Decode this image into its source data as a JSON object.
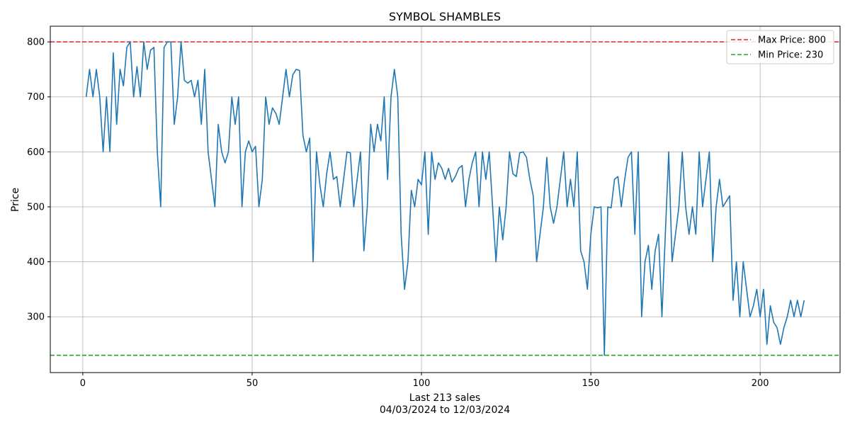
{
  "chart_data": {
    "type": "line",
    "title": "SYMBOL SHAMBLES",
    "xlabel": "Last 213 sales",
    "xlabel_sub": "04/03/2024 to 12/03/2024",
    "ylabel": "Price",
    "xlim": [
      -9.6,
      223.6
    ],
    "ylim": [
      198.5,
      828.5
    ],
    "xticks": [
      0,
      50,
      100,
      150,
      200
    ],
    "yticks": [
      300,
      400,
      500,
      600,
      700,
      800
    ],
    "grid": true,
    "legend_position": "top-right",
    "reference_lines": [
      {
        "label": "Max Price: 800",
        "value": 800,
        "color": "#d62728"
      },
      {
        "label": "Min Price: 230",
        "value": 230,
        "color": "#2ca02c"
      }
    ],
    "series": [
      {
        "color": "#1f77b4",
        "x": [
          1,
          2,
          3,
          4,
          5,
          6,
          7,
          8,
          9,
          10,
          11,
          12,
          13,
          14,
          15,
          16,
          17,
          18,
          19,
          20,
          21,
          22,
          23,
          24,
          25,
          26,
          27,
          28,
          29,
          30,
          31,
          32,
          33,
          34,
          35,
          36,
          37,
          38,
          39,
          40,
          41,
          42,
          43,
          44,
          45,
          46,
          47,
          48,
          49,
          50,
          51,
          52,
          53,
          54,
          55,
          56,
          57,
          58,
          59,
          60,
          61,
          62,
          63,
          64,
          65,
          66,
          67,
          68,
          69,
          70,
          71,
          72,
          73,
          74,
          75,
          76,
          77,
          78,
          79,
          80,
          81,
          82,
          83,
          84,
          85,
          86,
          87,
          88,
          89,
          90,
          91,
          92,
          93,
          94,
          95,
          96,
          97,
          98,
          99,
          100,
          101,
          102,
          103,
          104,
          105,
          106,
          107,
          108,
          109,
          110,
          111,
          112,
          113,
          114,
          115,
          116,
          117,
          118,
          119,
          120,
          121,
          122,
          123,
          124,
          125,
          126,
          127,
          128,
          129,
          130,
          131,
          132,
          133,
          134,
          135,
          136,
          137,
          138,
          139,
          140,
          141,
          142,
          143,
          144,
          145,
          146,
          147,
          148,
          149,
          150,
          151,
          152,
          153,
          154,
          155,
          156,
          157,
          158,
          159,
          160,
          161,
          162,
          163,
          164,
          165,
          166,
          167,
          168,
          169,
          170,
          171,
          172,
          173,
          174,
          175,
          176,
          177,
          178,
          179,
          180,
          181,
          182,
          183,
          184,
          185,
          186,
          187,
          188,
          189,
          190,
          191,
          192,
          193,
          194,
          195,
          196,
          197,
          198,
          199,
          200,
          201,
          202,
          203,
          204,
          205,
          206,
          207,
          208,
          209,
          210,
          211,
          212,
          213
        ],
        "y": [
          700,
          750,
          700,
          750,
          700,
          600,
          700,
          600,
          780,
          650,
          750,
          720,
          790,
          800,
          700,
          755,
          700,
          800,
          750,
          785,
          790,
          600,
          500,
          790,
          800,
          800,
          650,
          700,
          800,
          730,
          725,
          730,
          700,
          730,
          650,
          750,
          600,
          550,
          500,
          650,
          600,
          580,
          600,
          700,
          650,
          700,
          500,
          600,
          620,
          600,
          610,
          500,
          550,
          700,
          650,
          680,
          670,
          650,
          700,
          750,
          700,
          740,
          750,
          748,
          630,
          600,
          625,
          400,
          600,
          540,
          500,
          560,
          600,
          550,
          555,
          500,
          550,
          600,
          598,
          500,
          550,
          600,
          420,
          500,
          650,
          600,
          650,
          620,
          700,
          550,
          700,
          750,
          700,
          450,
          350,
          400,
          530,
          500,
          550,
          540,
          600,
          450,
          600,
          550,
          580,
          570,
          550,
          570,
          545,
          555,
          570,
          575,
          500,
          550,
          580,
          600,
          500,
          600,
          550,
          600,
          500,
          400,
          500,
          440,
          500,
          600,
          560,
          555,
          598,
          600,
          590,
          550,
          520,
          400,
          450,
          500,
          590,
          500,
          470,
          500,
          550,
          600,
          500,
          550,
          500,
          600,
          420,
          400,
          350,
          450,
          500,
          498,
          500,
          230,
          500,
          498,
          550,
          555,
          500,
          550,
          590,
          600,
          450,
          600,
          300,
          400,
          430,
          350,
          420,
          450,
          300,
          450,
          600,
          400,
          450,
          500,
          600,
          500,
          450,
          500,
          450,
          600,
          500,
          550,
          600,
          400,
          500,
          550,
          500,
          510,
          520,
          330,
          400,
          300,
          400,
          350,
          300,
          320,
          350,
          300,
          350,
          250,
          320,
          290,
          280,
          250,
          280,
          300,
          330,
          300,
          330,
          300,
          330
        ]
      }
    ]
  }
}
